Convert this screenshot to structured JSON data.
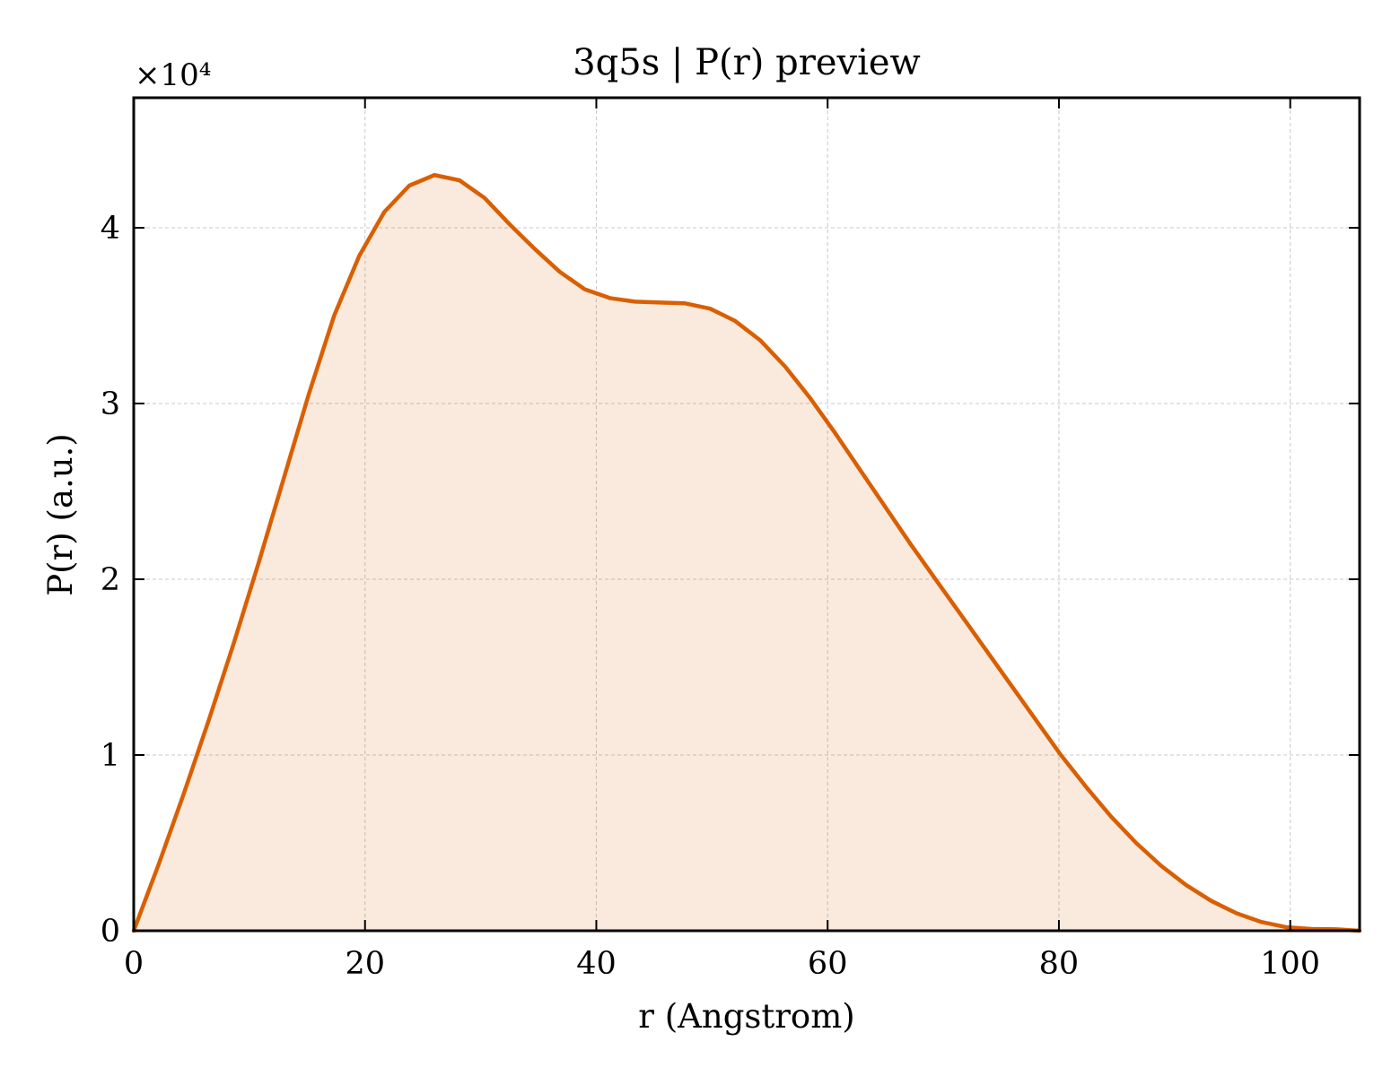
{
  "chart_data": {
    "type": "area",
    "title": "3q5s | P(r) preview",
    "xlabel": "r (Angstrom)",
    "ylabel": "P(r) (a.u.)",
    "y_offset_label": "×10⁴",
    "y_multiplier": 10000,
    "xlim": [
      0,
      106
    ],
    "ylim": [
      0,
      4.74
    ],
    "xticks": [
      0,
      20,
      40,
      60,
      80,
      100
    ],
    "yticks": [
      0,
      1,
      2,
      3,
      4
    ],
    "grid": true,
    "colors": {
      "line": "#d95f02",
      "fill": "#d95f02"
    },
    "series": [
      {
        "x": [
          0,
          2.17,
          4.33,
          6.5,
          8.67,
          10.83,
          13.0,
          15.17,
          17.33,
          19.5,
          21.67,
          23.83,
          26.0,
          28.17,
          30.33,
          32.5,
          34.67,
          36.83,
          39.0,
          41.17,
          43.33,
          45.5,
          47.67,
          49.83,
          52.0,
          54.17,
          56.33,
          58.5,
          60.67,
          62.83,
          65.0,
          67.17,
          69.33,
          71.5,
          73.67,
          75.83,
          78.0,
          80.17,
          82.33,
          84.5,
          86.67,
          88.83,
          91.0,
          93.17,
          95.33,
          97.5,
          99.67,
          101.83,
          104.0,
          106.0
        ],
        "y": [
          0,
          0.38,
          0.78,
          1.2,
          1.64,
          2.1,
          2.58,
          3.06,
          3.5,
          3.84,
          4.09,
          4.24,
          4.3,
          4.27,
          4.17,
          4.02,
          3.88,
          3.75,
          3.65,
          3.6,
          3.58,
          3.575,
          3.57,
          3.54,
          3.47,
          3.36,
          3.21,
          3.03,
          2.83,
          2.62,
          2.41,
          2.2,
          2.0,
          1.8,
          1.6,
          1.4,
          1.2,
          1.0,
          0.82,
          0.65,
          0.5,
          0.37,
          0.26,
          0.17,
          0.1,
          0.05,
          0.02,
          0.01,
          0.008,
          0
        ]
      }
    ]
  }
}
